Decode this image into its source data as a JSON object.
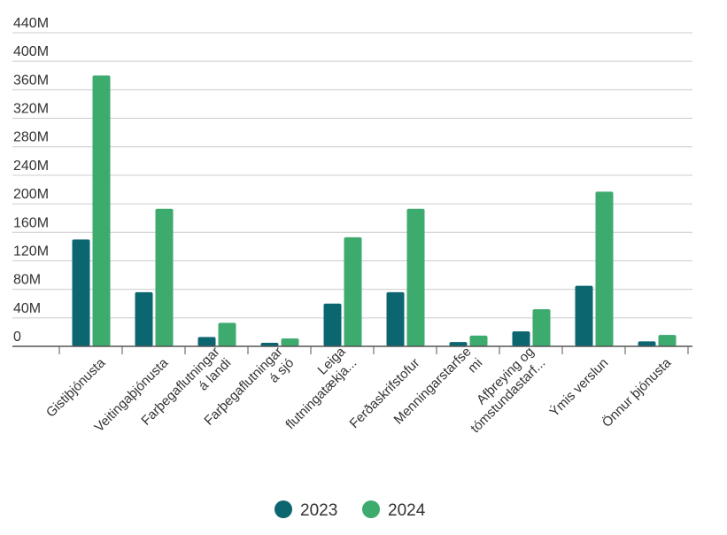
{
  "colors": {
    "2023": "#0b6670",
    "2024": "#3daa6e",
    "grid": "#cccccc",
    "axis": "#555555",
    "text": "#333333"
  },
  "chart_data": {
    "type": "bar",
    "title": "",
    "xlabel": "",
    "ylabel": "",
    "ylim": [
      0,
      440
    ],
    "yticks": [
      "0",
      "40M",
      "80M",
      "120M",
      "160M",
      "200M",
      "240M",
      "280M",
      "320M",
      "360M",
      "400M",
      "440M"
    ],
    "grid": true,
    "legend": "bottom",
    "categories": [
      [
        "Gistiþjónusta"
      ],
      [
        "Veitingaþjónusta"
      ],
      [
        "Farþegaflutningar",
        "á landi"
      ],
      [
        "Farþegaflutningar",
        "á sjó"
      ],
      [
        "Leiga",
        "flutningatækja..."
      ],
      [
        "Ferðaskrifstofur"
      ],
      [
        "Menningarstarfse",
        "mi"
      ],
      [
        "Afþreying og",
        "tómstundastarf..."
      ],
      [
        "Ýmis verslun"
      ],
      [
        "Önnur þjónusta"
      ]
    ],
    "series": [
      {
        "name": "2023",
        "values": [
          150,
          76,
          13,
          5,
          60,
          76,
          6,
          21,
          85,
          7
        ]
      },
      {
        "name": "2024",
        "values": [
          380,
          193,
          33,
          11,
          153,
          193,
          15,
          52,
          217,
          16
        ]
      }
    ]
  }
}
